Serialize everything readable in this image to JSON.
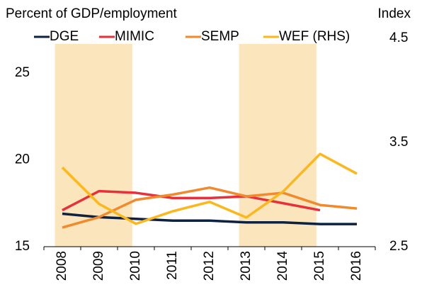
{
  "chart_data": {
    "type": "line",
    "y_label": "Percent of GDP/employment",
    "y2_label": "Index",
    "categories": [
      "2008",
      "2009",
      "2010",
      "2011",
      "2012",
      "2013",
      "2014",
      "2015",
      "2016"
    ],
    "series": [
      {
        "name": "DGE",
        "color": "#0d2240",
        "values": [
          16.9,
          16.7,
          16.6,
          16.5,
          16.5,
          16.4,
          16.4,
          16.3,
          16.3
        ]
      },
      {
        "name": "MIMIC",
        "color": "#e8303a",
        "values": [
          17.1,
          18.2,
          18.1,
          17.8,
          17.8,
          17.9,
          17.5,
          17.1,
          null
        ]
      },
      {
        "name": "SEMP",
        "color": "#f08a2c",
        "values": [
          16.1,
          16.7,
          17.7,
          18.0,
          18.4,
          17.9,
          18.1,
          17.4,
          17.2
        ]
      },
      {
        "name": "WEF (RHS)",
        "color": "#fbb71b",
        "axis": "y2",
        "values": [
          3.26,
          2.91,
          2.72,
          2.84,
          2.93,
          2.78,
          3.03,
          3.39,
          3.2
        ]
      }
    ],
    "ylim": [
      15,
      27
    ],
    "yticks": [
      15,
      20,
      25
    ],
    "y2lim": [
      2.5,
      4.5
    ],
    "y2ticks": [
      2.5,
      3.5,
      4.5
    ],
    "shaded": [
      [
        "2008",
        "2010"
      ],
      [
        "2013",
        "2015"
      ]
    ],
    "shade_color": "#fbe5bd",
    "grid": false
  }
}
